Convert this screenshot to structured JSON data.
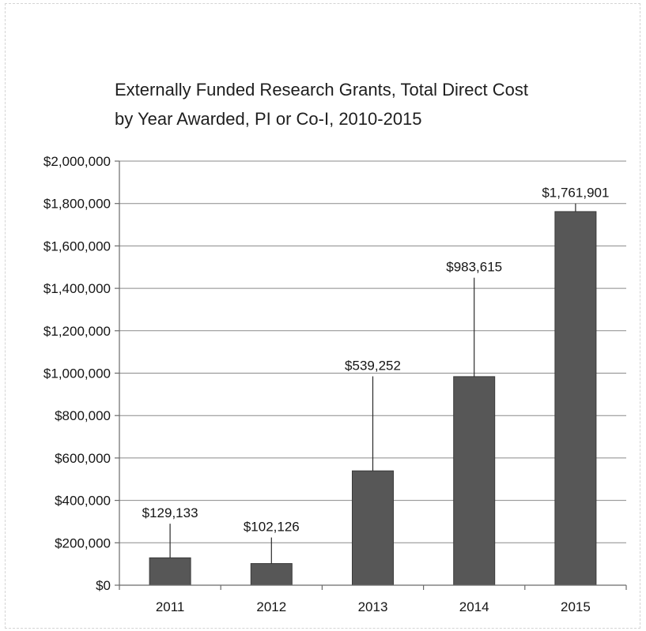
{
  "chart_data": {
    "type": "bar",
    "title_lines": [
      "Externally Funded Research Grants, Total Direct Cost",
      "by Year Awarded,  PI or Co-I, 2010-2015"
    ],
    "categories": [
      "2011",
      "2012",
      "2013",
      "2014",
      "2015"
    ],
    "values": [
      129133,
      102126,
      539252,
      983615,
      1761901
    ],
    "value_labels": [
      "$129,133",
      "$102,126",
      "$539,252",
      "$983,615",
      "$1,761,901"
    ],
    "y_ticks": [
      0,
      200000,
      400000,
      600000,
      800000,
      1000000,
      1200000,
      1400000,
      1600000,
      1800000,
      2000000
    ],
    "y_tick_labels": [
      "$0",
      "$200,000",
      "$400,000",
      "$600,000",
      "$800,000",
      "$1,000,000",
      "$1,200,000",
      "$1,400,000",
      "$1,600,000",
      "$1,800,000",
      "$2,000,000"
    ],
    "label_values": [
      290000,
      225000,
      985000,
      1450000,
      1800000
    ],
    "ylim": [
      0,
      2000000
    ],
    "xlabel": "",
    "ylabel": "",
    "grid": true,
    "legend": "none",
    "bar_color": "#575757"
  }
}
